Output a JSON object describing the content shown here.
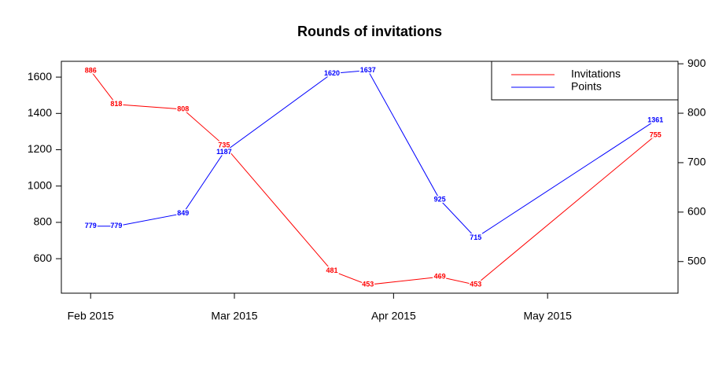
{
  "chart_data": {
    "type": "line",
    "title": "Rounds of invitations",
    "x": [
      0,
      5,
      18,
      26,
      47,
      54,
      68,
      75,
      110
    ],
    "xlim": [
      -5.7,
      114.4
    ],
    "xticks": [
      {
        "value": 0,
        "label": "Feb 2015"
      },
      {
        "value": 28,
        "label": "Mar 2015"
      },
      {
        "value": 59,
        "label": "Apr 2015"
      },
      {
        "value": 89,
        "label": "May 2015"
      }
    ],
    "ylim": [
      410,
      1687
    ],
    "yticks": [
      600,
      800,
      1000,
      1200,
      1400,
      1600
    ],
    "y2lim": [
      436,
      905
    ],
    "y2ticks": [
      500,
      600,
      700,
      800,
      900
    ],
    "legend": "top-right",
    "series": [
      {
        "name": "Invitations",
        "color": "#ff0000",
        "axis": "y2",
        "values": [
          886,
          818,
          808,
          735,
          481,
          453,
          469,
          453,
          755
        ]
      },
      {
        "name": "Points",
        "color": "#0000ff",
        "values": [
          779,
          779,
          849,
          1187,
          1620,
          1637,
          925,
          715,
          1361
        ]
      }
    ]
  }
}
